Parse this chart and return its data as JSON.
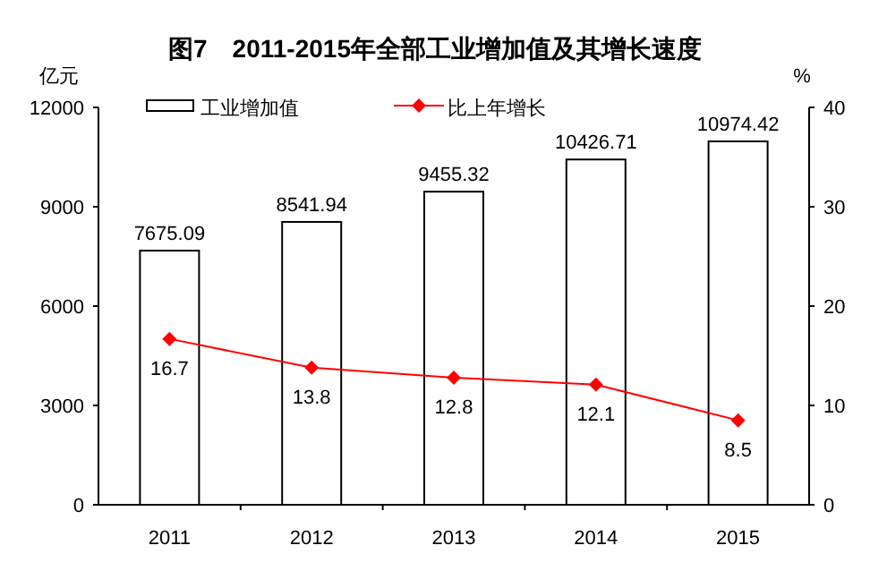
{
  "chart_data": {
    "type": "bar",
    "title": "图7　2011-2015年全部工业增加值及其增长速度",
    "ylabel": "亿元",
    "y2label": "%",
    "categories": [
      "2011",
      "2012",
      "2013",
      "2014",
      "2015"
    ],
    "series": [
      {
        "name": "工业增加值",
        "color": "#ffffff",
        "values": [
          7675.09,
          8541.94,
          9455.32,
          10426.71,
          10974.42
        ]
      },
      {
        "name": "比上年增长",
        "type": "line",
        "axis": "y2",
        "color": "#ff0000",
        "marker": "diamond",
        "values": [
          16.7,
          13.8,
          12.8,
          12.1,
          8.5
        ]
      }
    ],
    "ylim": [
      0,
      12000
    ],
    "yticks": [
      0,
      3000,
      6000,
      9000,
      12000
    ],
    "y2lim": [
      0,
      40
    ],
    "y2ticks": [
      0,
      10,
      20,
      30,
      40
    ],
    "data_labels": true,
    "legend": "top",
    "grid": false
  }
}
